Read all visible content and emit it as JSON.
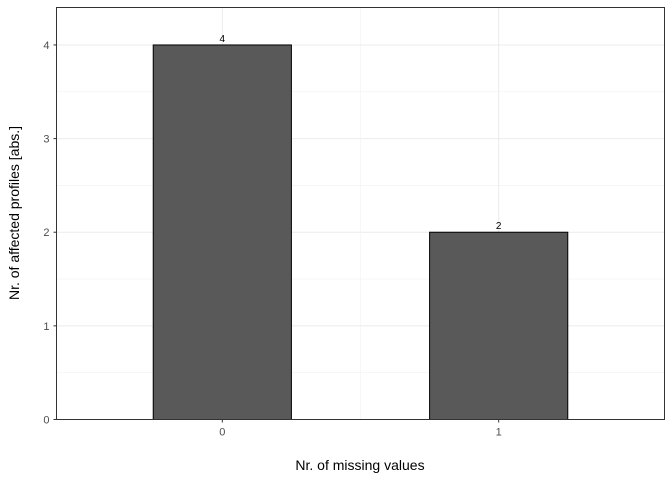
{
  "chart_data": {
    "type": "bar",
    "categories": [
      "0",
      "1"
    ],
    "values": [
      4,
      2
    ],
    "data_labels": [
      "4",
      "2"
    ],
    "title": "",
    "xlabel": "Nr. of missing values",
    "ylabel": "Nr. of affected profiles [abs.]",
    "ylim": [
      0,
      4.4
    ],
    "yticks": [
      "0",
      "1",
      "2",
      "3",
      "4"
    ],
    "grid": true,
    "bar_color": "#595959",
    "bar_outline": "#000000"
  }
}
